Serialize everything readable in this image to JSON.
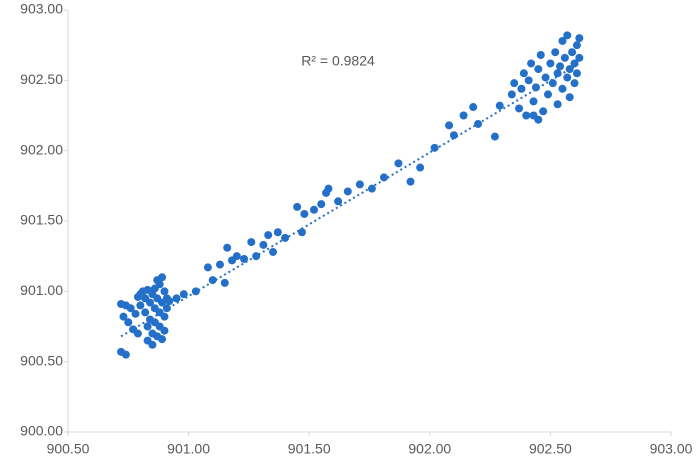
{
  "chart_data": {
    "type": "scatter",
    "annotation": "R² = 0.9824",
    "color": "#2470c8",
    "x": [
      900.72,
      900.74,
      900.72,
      900.74,
      900.76,
      900.73,
      900.75,
      900.77,
      900.79,
      900.8,
      900.81,
      900.82,
      900.82,
      900.83,
      900.83,
      900.84,
      900.84,
      900.85,
      900.85,
      900.86,
      900.86,
      900.86,
      900.87,
      900.87,
      900.88,
      900.88,
      900.88,
      900.89,
      900.89,
      900.89,
      900.9,
      900.9,
      900.9,
      900.91,
      900.91,
      900.92,
      900.85,
      900.87,
      900.83,
      900.8,
      900.78,
      900.79,
      900.95,
      900.98,
      901.03,
      901.08,
      901.1,
      901.13,
      901.15,
      901.16,
      901.18,
      901.2,
      901.23,
      901.26,
      901.28,
      901.31,
      901.33,
      901.35,
      901.37,
      901.4,
      901.45,
      901.47,
      901.48,
      901.52,
      901.55,
      901.57,
      901.58,
      901.62,
      901.66,
      901.71,
      901.76,
      901.81,
      901.87,
      901.92,
      901.96,
      902.02,
      902.08,
      902.1,
      902.14,
      902.18,
      902.2,
      902.27,
      902.29,
      902.34,
      902.35,
      902.37,
      902.38,
      902.39,
      902.4,
      902.41,
      902.42,
      902.43,
      902.44,
      902.45,
      902.46,
      902.47,
      902.48,
      902.49,
      902.5,
      902.51,
      902.52,
      902.53,
      902.53,
      902.54,
      902.55,
      902.55,
      902.56,
      902.57,
      902.57,
      902.58,
      902.58,
      902.59,
      902.6,
      902.6,
      902.61,
      902.61,
      902.62,
      902.62,
      902.45,
      902.43
    ],
    "values": [
      900.57,
      900.55,
      900.91,
      900.9,
      900.88,
      900.82,
      900.78,
      900.73,
      900.7,
      900.98,
      901.0,
      900.95,
      900.85,
      900.75,
      900.65,
      900.92,
      900.8,
      900.7,
      900.62,
      900.88,
      901.02,
      900.78,
      900.95,
      900.68,
      901.05,
      900.85,
      900.75,
      901.1,
      900.92,
      900.66,
      901.0,
      900.82,
      900.72,
      900.95,
      900.88,
      900.93,
      900.98,
      901.08,
      901.01,
      900.9,
      900.84,
      900.96,
      900.95,
      900.98,
      901.0,
      901.17,
      901.08,
      901.19,
      901.06,
      901.31,
      901.22,
      901.25,
      901.23,
      901.35,
      901.25,
      901.33,
      901.4,
      901.28,
      901.42,
      901.38,
      901.6,
      901.42,
      901.55,
      901.58,
      901.62,
      901.7,
      901.73,
      901.64,
      901.71,
      901.76,
      901.73,
      901.81,
      901.91,
      901.78,
      901.88,
      902.02,
      902.18,
      902.11,
      902.25,
      902.31,
      902.19,
      902.1,
      902.32,
      902.4,
      902.48,
      902.3,
      902.44,
      902.55,
      902.25,
      902.5,
      902.62,
      902.35,
      902.45,
      902.58,
      902.68,
      902.28,
      902.52,
      902.4,
      902.62,
      902.48,
      902.7,
      902.55,
      902.33,
      902.6,
      902.78,
      902.44,
      902.66,
      902.52,
      902.82,
      902.58,
      902.38,
      902.7,
      902.48,
      902.62,
      902.75,
      902.55,
      902.8,
      902.66,
      902.22,
      902.25
    ],
    "trendline": {
      "x": [
        900.72,
        902.62
      ],
      "y": [
        900.68,
        902.62
      ]
    },
    "xlim": [
      900.5,
      903.0
    ],
    "xticks": [
      {
        "value": 900.5,
        "label": "900.50"
      },
      {
        "value": 901.0,
        "label": "901.00"
      },
      {
        "value": 901.5,
        "label": "901.50"
      },
      {
        "value": 902.0,
        "label": "902.00"
      },
      {
        "value": 902.5,
        "label": "902.50"
      },
      {
        "value": 903.0,
        "label": "903.00"
      }
    ],
    "ylim": [
      900.0,
      903.0
    ],
    "yticks": [
      {
        "value": 900.0,
        "label": "900.00"
      },
      {
        "value": 900.5,
        "label": "900.50"
      },
      {
        "value": 901.0,
        "label": "901.00"
      },
      {
        "value": 901.5,
        "label": "901.50"
      },
      {
        "value": 902.0,
        "label": "902.00"
      },
      {
        "value": 902.5,
        "label": "902.50"
      },
      {
        "value": 903.0,
        "label": "903.00"
      }
    ]
  }
}
